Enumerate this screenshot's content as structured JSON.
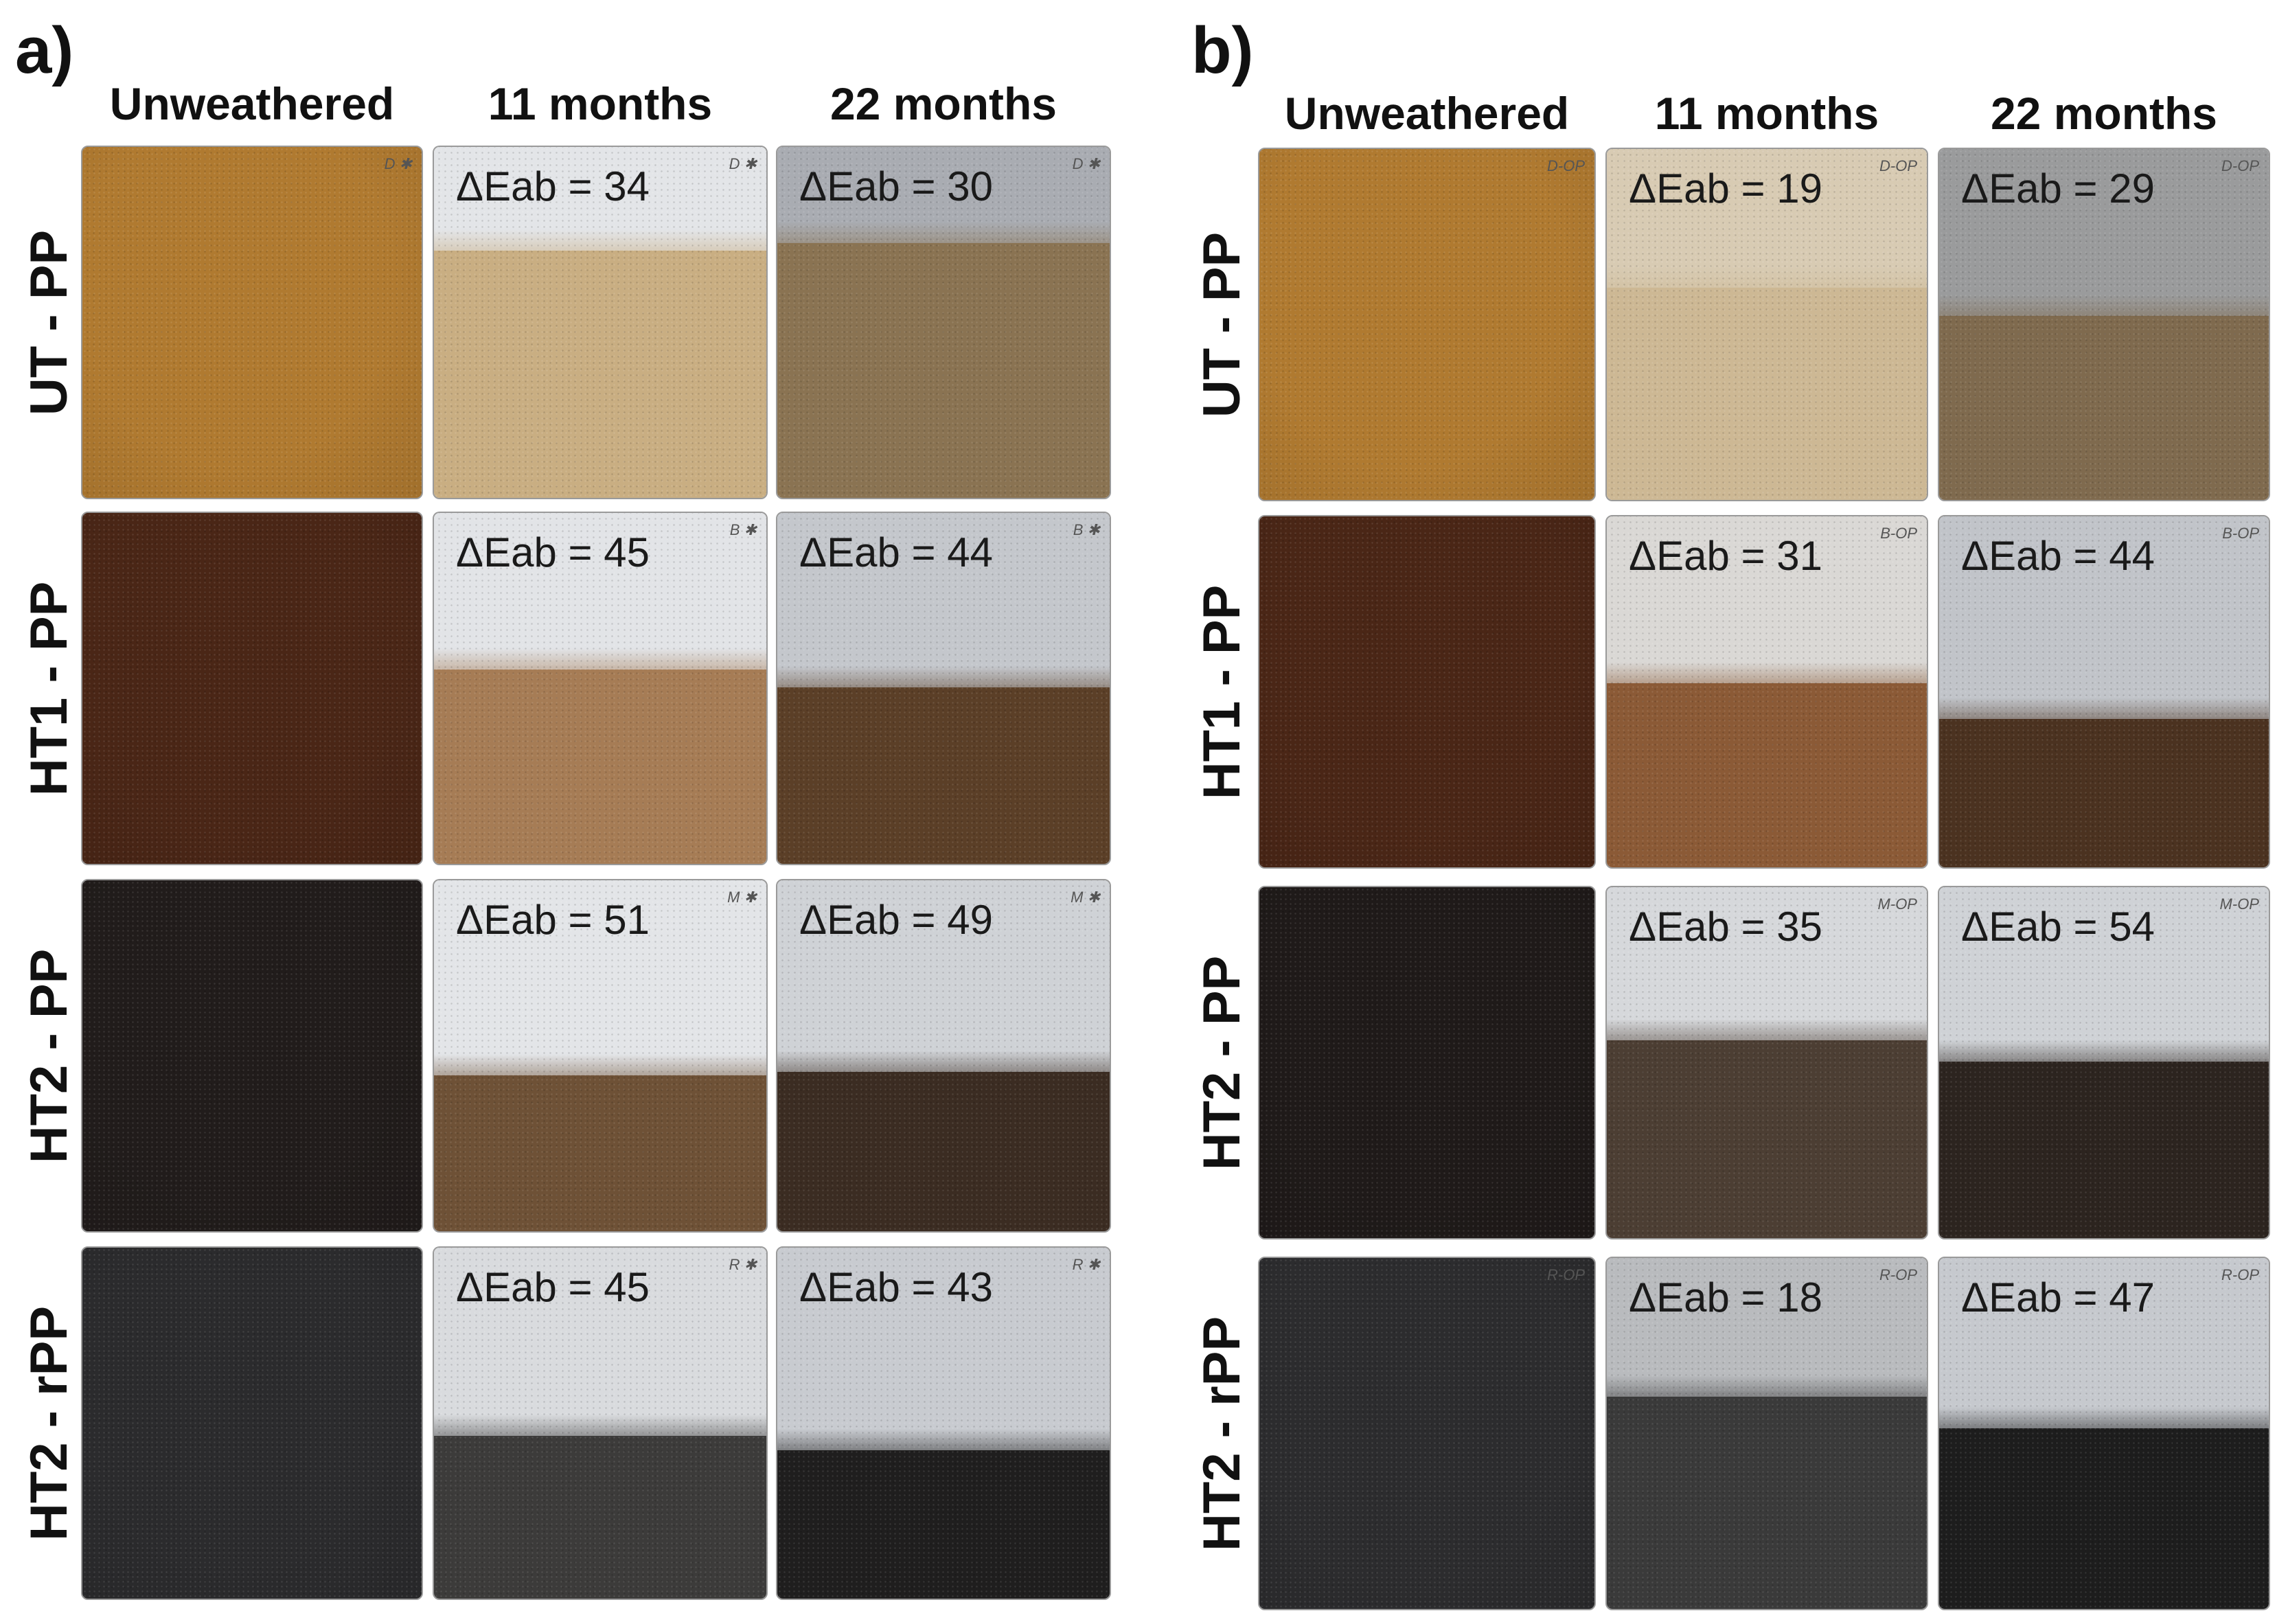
{
  "panels": [
    {
      "label": "a)",
      "columns": [
        "Unweathered",
        "11 months",
        "22 months"
      ],
      "rows": [
        {
          "label": "UT - PP",
          "marks": [
            "D ✱",
            "D ✱",
            "D ✱"
          ],
          "delta": [
            "",
            "ΔEab = 34",
            "ΔEab = 30"
          ],
          "base": "#b07a30",
          "w11": "#e3e5e8",
          "b11": "#c9ae82",
          "w22": "#a9acb2",
          "b22": "#8a7352",
          "f11": 0.3,
          "f22": 0.28
        },
        {
          "label": "HT1 - PP",
          "marks": [
            "",
            "B ✱",
            "B ✱"
          ],
          "delta": [
            "",
            "ΔEab = 45",
            "ΔEab = 44"
          ],
          "base": "#4a2616",
          "w11": "#e2e4e7",
          "b11": "#a67c55",
          "w22": "#c4c7cc",
          "b22": "#5b3f27",
          "f11": 0.45,
          "f22": 0.5
        },
        {
          "label": "HT2 - PP",
          "marks": [
            "",
            "M ✱",
            "M ✱"
          ],
          "delta": [
            "",
            "ΔEab = 51",
            "ΔEab = 49"
          ],
          "base": "#211c1b",
          "w11": "#e3e5e8",
          "b11": "#6e5136",
          "w22": "#cfd2d6",
          "b22": "#3b2c22",
          "f11": 0.56,
          "f22": 0.55
        },
        {
          "label": "HT2 - rPP",
          "marks": [
            "",
            "R ✱",
            "R ✱"
          ],
          "delta": [
            "",
            "ΔEab = 45",
            "ΔEab = 43"
          ],
          "base": "#2b2b2d",
          "w11": "#d9dbde",
          "b11": "#3c3b3a",
          "w22": "#c8cbd0",
          "b22": "#1f1e1e",
          "f11": 0.54,
          "f22": 0.58
        }
      ]
    },
    {
      "label": "b)",
      "columns": [
        "Unweathered",
        "11 months",
        "22 months"
      ],
      "rows": [
        {
          "label": "UT - PP",
          "marks": [
            "D-OP",
            "D-OP",
            "D-OP"
          ],
          "delta": [
            "",
            "ΔEab = 19",
            "ΔEab = 29"
          ],
          "base": "#b07a30",
          "w11": "#d8cbb3",
          "b11": "#cdb894",
          "w22": "#9a9b9c",
          "b22": "#7f6a4e",
          "f11": 0.4,
          "f22": 0.48
        },
        {
          "label": "HT1 - PP",
          "marks": [
            "",
            "B-OP",
            "B-OP"
          ],
          "delta": [
            "",
            "ΔEab = 31",
            "ΔEab = 44"
          ],
          "base": "#4a2616",
          "w11": "#dad8d5",
          "b11": "#8b5a36",
          "w22": "#c1c4c9",
          "b22": "#4b3220",
          "f11": 0.48,
          "f22": 0.58
        },
        {
          "label": "HT2 - PP",
          "marks": [
            "",
            "M-OP",
            "M-OP"
          ],
          "delta": [
            "",
            "ΔEab = 35",
            "ΔEab = 54"
          ],
          "base": "#1f1a19",
          "w11": "#d6d8db",
          "b11": "#4c3e33",
          "w22": "#cfd2d6",
          "b22": "#2c241f",
          "f11": 0.44,
          "f22": 0.5
        },
        {
          "label": "HT2 - rPP",
          "marks": [
            "R-OP",
            "R-OP",
            "R-OP"
          ],
          "delta": [
            "",
            "ΔEab = 18",
            "ΔEab = 47"
          ],
          "base": "#2c2c2e",
          "w11": "#b9bbbe",
          "b11": "#3a3a3a",
          "w22": "#c6c9ce",
          "b22": "#1d1d1d",
          "f11": 0.4,
          "f22": 0.49
        }
      ]
    }
  ]
}
